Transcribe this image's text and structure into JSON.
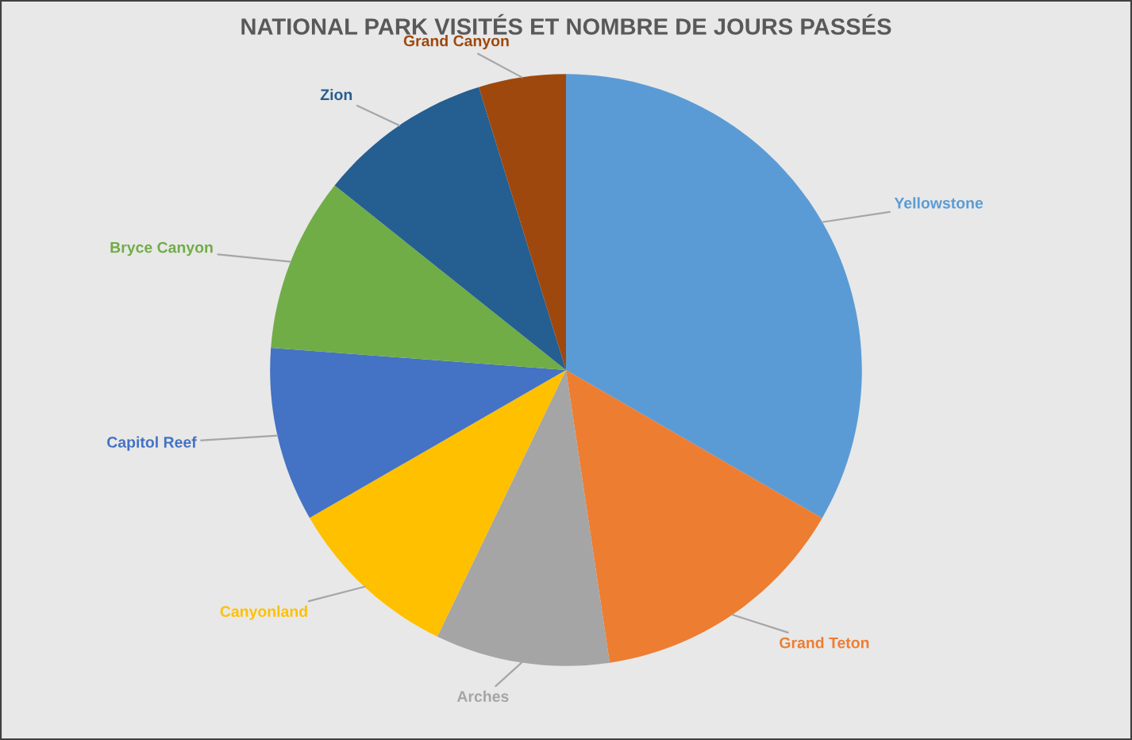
{
  "chart_data": {
    "type": "pie",
    "title": "NATIONAL PARK VISITÉS ET NOMBRE DE JOURS PASSÉS",
    "categories": [
      "Yellowstone",
      "Grand Teton",
      "Arches",
      "Canyonland",
      "Capitol Reef",
      "Bryce Canyon",
      "Zion",
      "Grand Canyon"
    ],
    "values": [
      33.35,
      14.29,
      9.52,
      9.52,
      9.52,
      9.52,
      9.52,
      4.76
    ],
    "colors": [
      "#5b9bd5",
      "#ed7d31",
      "#a5a5a5",
      "#ffc000",
      "#4472c4",
      "#70ad47",
      "#255e91",
      "#9e480e"
    ],
    "legend": false
  }
}
